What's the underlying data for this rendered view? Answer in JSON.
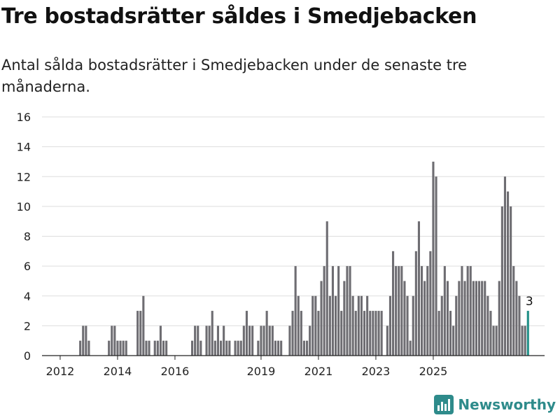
{
  "header": {
    "title": "Tre bostadsrätter såldes i Smedjebacken",
    "subtitle": "Antal sålda bostadsrätter i Smedjebacken under de senaste tre månaderna."
  },
  "brand": {
    "name": "Newsworthy",
    "icon": "newsworthy-logo-icon",
    "color": "#2e8b8b"
  },
  "colors": {
    "bar": "#6e6d72",
    "highlight": "#1f8f87",
    "grid": "#dddddd"
  },
  "chart_data": {
    "type": "bar",
    "title": "",
    "xlabel": "",
    "ylabel": "",
    "ylim": [
      0,
      16
    ],
    "yticks": [
      0,
      2,
      4,
      6,
      8,
      10,
      12,
      14,
      16
    ],
    "xticks": [
      "2012",
      "2014",
      "2016",
      "2019",
      "2021",
      "2023",
      "2025"
    ],
    "xtick_months": [
      4,
      24,
      44,
      74,
      94,
      114,
      134
    ],
    "grid": true,
    "highlight_label": "3",
    "series": [
      {
        "values": [
          0,
          0,
          0,
          0,
          0,
          0,
          0,
          0,
          0,
          0,
          0,
          1,
          2,
          2,
          1,
          0,
          0,
          0,
          0,
          0,
          0,
          1,
          2,
          2,
          1,
          1,
          1,
          1,
          0,
          0,
          0,
          3,
          3,
          4,
          1,
          1,
          0,
          1,
          1,
          2,
          1,
          1,
          0,
          0,
          0,
          0,
          0,
          0,
          0,
          0,
          1,
          2,
          2,
          1,
          0,
          2,
          2,
          3,
          1,
          2,
          1,
          2,
          1,
          1,
          0,
          1,
          1,
          1,
          2,
          3,
          2,
          2,
          0,
          1,
          2,
          2,
          3,
          2,
          2,
          1,
          1,
          1,
          0,
          0,
          2,
          3,
          6,
          4,
          3,
          1,
          1,
          2,
          4,
          4,
          3,
          5,
          6,
          9,
          4,
          6,
          4,
          6,
          3,
          5,
          6,
          6,
          4,
          3,
          4,
          4,
          3,
          4,
          3,
          3,
          3,
          3,
          3,
          0,
          2,
          4,
          7,
          6,
          6,
          6,
          5,
          4,
          1,
          4,
          7,
          9,
          6,
          5,
          6,
          7,
          13,
          12,
          3,
          4,
          6,
          5,
          3,
          2,
          4,
          5,
          6,
          5,
          6,
          6,
          5,
          5,
          5,
          5,
          5,
          4,
          3,
          2,
          2,
          5,
          10,
          12,
          11,
          10,
          6,
          5,
          4,
          2,
          2,
          3
        ]
      }
    ]
  }
}
